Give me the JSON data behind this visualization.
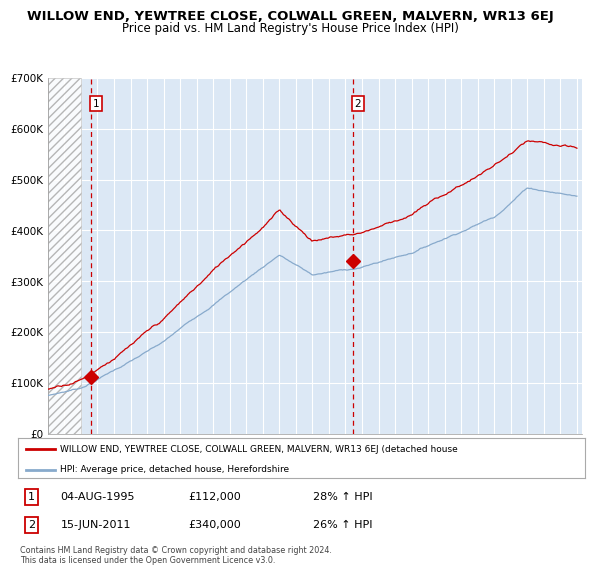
{
  "title": "WILLOW END, YEWTREE CLOSE, COLWALL GREEN, MALVERN, WR13 6EJ",
  "subtitle": "Price paid vs. HM Land Registry's House Price Index (HPI)",
  "ylim": [
    0,
    700000
  ],
  "yticks": [
    0,
    100000,
    200000,
    300000,
    400000,
    500000,
    600000,
    700000
  ],
  "ytick_labels": [
    "£0",
    "£100K",
    "£200K",
    "£300K",
    "£400K",
    "£500K",
    "£600K",
    "£700K"
  ],
  "sale1_date": 1995.59,
  "sale1_price": 112000,
  "sale1_label": "1",
  "sale2_date": 2011.46,
  "sale2_price": 340000,
  "sale2_label": "2",
  "legend_line1": "WILLOW END, YEWTREE CLOSE, COLWALL GREEN, MALVERN, WR13 6EJ (detached house",
  "legend_line2": "HPI: Average price, detached house, Herefordshire",
  "annotation1_date": "04-AUG-1995",
  "annotation1_price": "£112,000",
  "annotation1_hpi": "28% ↑ HPI",
  "annotation2_date": "15-JUN-2011",
  "annotation2_price": "£340,000",
  "annotation2_hpi": "26% ↑ HPI",
  "footer": "Contains HM Land Registry data © Crown copyright and database right 2024.\nThis data is licensed under the Open Government Licence v3.0.",
  "grid_color": "#c8d8e8",
  "sale_color": "#cc0000",
  "hpi_color": "#88aacc",
  "background_plot": "#dce8f5",
  "hatch_facecolor": "white",
  "title_fontsize": 9.5,
  "subtitle_fontsize": 8.5
}
